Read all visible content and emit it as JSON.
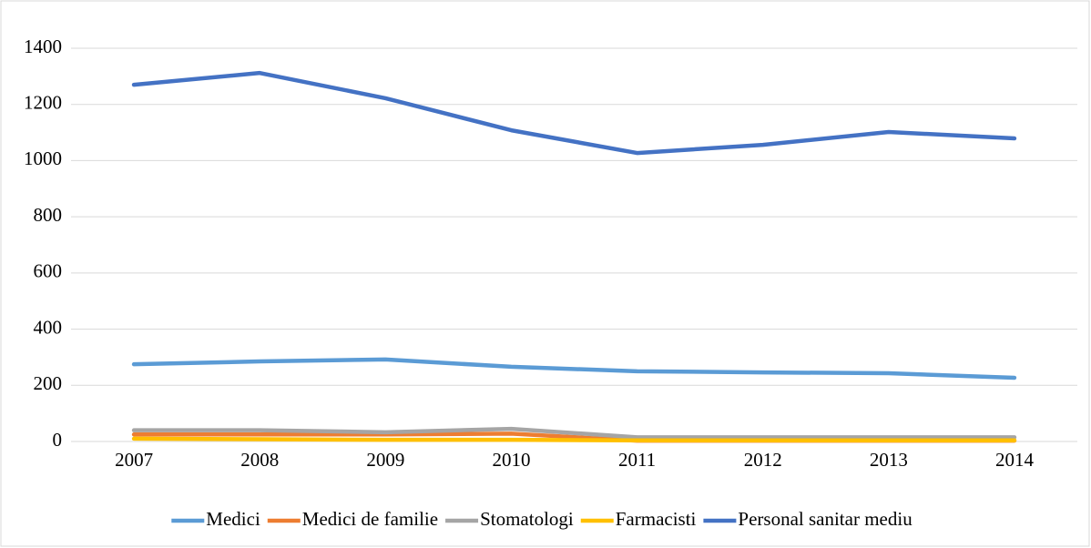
{
  "chart_data": {
    "type": "line",
    "categories": [
      "2007",
      "2008",
      "2009",
      "2010",
      "2011",
      "2012",
      "2013",
      "2014"
    ],
    "series": [
      {
        "name": "Medici",
        "color": "#5b9bd5",
        "values": [
          275,
          285,
          292,
          266,
          250,
          246,
          243,
          227
        ]
      },
      {
        "name": "Medici de familie",
        "color": "#ed7d31",
        "values": [
          25,
          25,
          25,
          28,
          3,
          3,
          3,
          3
        ]
      },
      {
        "name": "Stomatologi",
        "color": "#a5a5a5",
        "values": [
          40,
          40,
          33,
          45,
          15,
          15,
          15,
          15
        ]
      },
      {
        "name": "Farmacisti",
        "color": "#ffc000",
        "values": [
          10,
          8,
          6,
          6,
          4,
          4,
          4,
          4
        ]
      },
      {
        "name": "Personal sanitar mediu",
        "color": "#4472c4",
        "values": [
          1270,
          1312,
          1222,
          1108,
          1027,
          1056,
          1102,
          1079
        ]
      }
    ],
    "ylim": [
      0,
      1400
    ],
    "yticks": [
      0,
      200,
      400,
      600,
      800,
      1000,
      1200,
      1400
    ],
    "grid": true,
    "legend": "bottom"
  }
}
